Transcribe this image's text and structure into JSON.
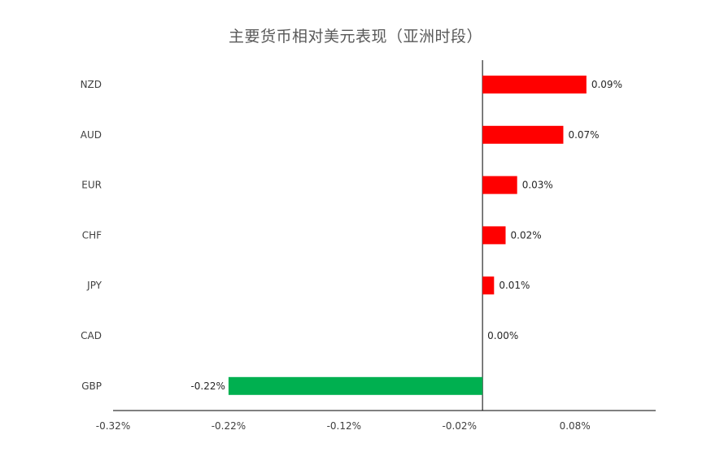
{
  "chart_data": {
    "type": "bar",
    "orientation": "horizontal",
    "title": "主要货币相对美元表现（亚洲时段）",
    "categories": [
      "NZD",
      "AUD",
      "EUR",
      "CHF",
      "JPY",
      "CAD",
      "GBP"
    ],
    "values": [
      0.09,
      0.07,
      0.03,
      0.02,
      0.01,
      0.0,
      -0.22
    ],
    "data_labels": [
      "0.09%",
      "0.07%",
      "0.03%",
      "0.02%",
      "0.01%",
      "0.00%",
      "-0.22%"
    ],
    "xlim": [
      -0.32,
      0.15
    ],
    "x_ticks": [
      -0.32,
      -0.22,
      -0.12,
      -0.02,
      0.08
    ],
    "x_tick_labels": [
      "-0.32%",
      "-0.22%",
      "-0.12%",
      "-0.02%",
      "0.08%"
    ],
    "xlabel": "",
    "ylabel": "",
    "grid": false,
    "legend": "none",
    "colors": {
      "positive": "#ff0000",
      "negative": "#00b050",
      "axis": "#000000",
      "text": "#404040",
      "title": "#595959"
    }
  }
}
